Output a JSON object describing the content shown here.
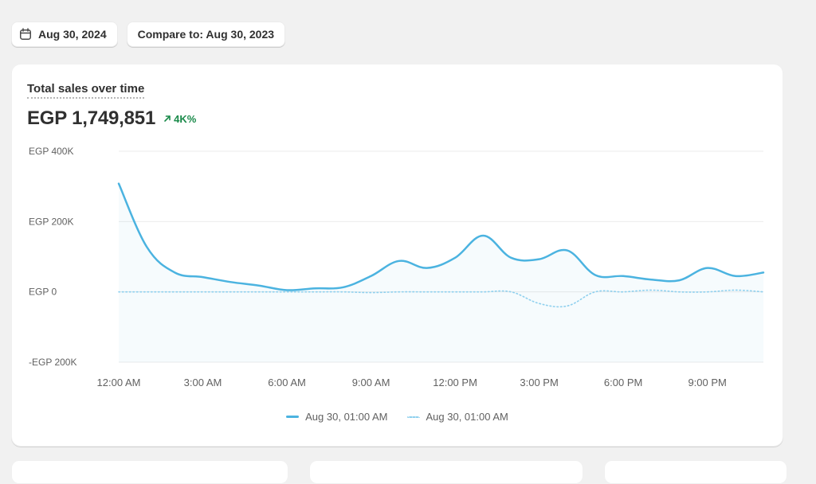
{
  "toolbar": {
    "date_label": "Aug 30, 2024",
    "compare_label": "Compare to: Aug 30, 2023"
  },
  "card": {
    "title": "Total sales over time",
    "metric_value": "EGP 1,749,851",
    "metric_change": "4K%"
  },
  "colors": {
    "primary_series": "#4bb3e0",
    "comparison_series": "#8fd0ee",
    "positive_change": "#1a8a4a"
  },
  "icons": {
    "date": "calendar-icon",
    "change": "arrow-up-right-icon"
  },
  "chart_data": {
    "type": "line",
    "title": "",
    "xlabel": "",
    "ylabel": "",
    "ylim": [
      -200000,
      400000
    ],
    "y_ticks": [
      {
        "value": 400000,
        "label": "EGP 400K"
      },
      {
        "value": 200000,
        "label": "EGP 200K"
      },
      {
        "value": 0,
        "label": "EGP 0"
      },
      {
        "value": -200000,
        "label": "-EGP 200K"
      }
    ],
    "x_range": [
      0,
      23
    ],
    "x_ticks": [
      {
        "value": 0,
        "label": "12:00 AM"
      },
      {
        "value": 3,
        "label": "3:00 AM"
      },
      {
        "value": 6,
        "label": "6:00 AM"
      },
      {
        "value": 9,
        "label": "9:00 AM"
      },
      {
        "value": 12,
        "label": "12:00 PM"
      },
      {
        "value": 15,
        "label": "3:00 PM"
      },
      {
        "value": 18,
        "label": "6:00 PM"
      },
      {
        "value": 21,
        "label": "9:00 PM"
      }
    ],
    "grid": true,
    "legend_position": "bottom",
    "series": [
      {
        "name": "Aug 30, 01:00 AM",
        "style": "solid",
        "x": [
          0,
          1,
          2,
          3,
          4,
          5,
          6,
          7,
          8,
          9,
          10,
          11,
          12,
          13,
          14,
          15,
          16,
          17,
          18,
          19,
          20,
          21,
          22,
          23
        ],
        "values": [
          308000,
          128000,
          55000,
          42000,
          28000,
          18000,
          5000,
          10000,
          13000,
          45000,
          88000,
          68000,
          97000,
          160000,
          97000,
          93000,
          118000,
          48000,
          45000,
          35000,
          33000,
          68000,
          45000,
          55000
        ]
      },
      {
        "name": "Aug 30, 01:00 AM",
        "style": "dotted",
        "x": [
          0,
          1,
          2,
          3,
          4,
          5,
          6,
          7,
          8,
          9,
          10,
          11,
          12,
          13,
          14,
          15,
          16,
          17,
          18,
          19,
          20,
          21,
          22,
          23
        ],
        "values": [
          0,
          0,
          0,
          0,
          0,
          0,
          0,
          0,
          0,
          -2000,
          0,
          0,
          0,
          0,
          0,
          -33000,
          -40000,
          0,
          0,
          5000,
          0,
          0,
          5000,
          0
        ]
      }
    ]
  }
}
